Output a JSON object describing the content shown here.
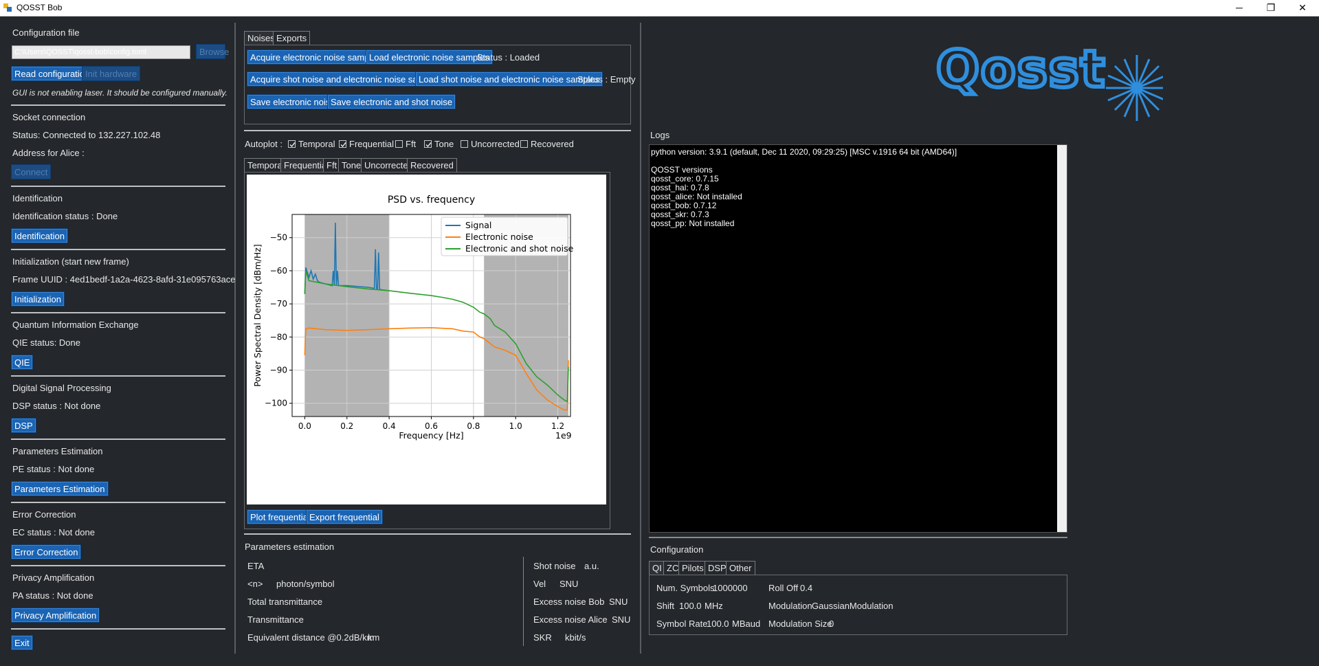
{
  "window": {
    "title": "QOSST Bob",
    "controls": [
      "─",
      "❐",
      "✕"
    ]
  },
  "left": {
    "config_heading": "Configuration file",
    "config_path": "C:\\Users\\QOSST\\qosst-bob\\config.toml",
    "browse": "Browse",
    "read_config": "Read configuration",
    "init_hardware": "Init hardware",
    "laser_note": "GUI is not enabling laser. It should be configured manually.",
    "socket_heading": "Socket connection",
    "socket_status": "Status: Connected to 132.227.102.48",
    "alice_address": "Address for Alice :",
    "connect": "Connect",
    "ident_heading": "Identification",
    "ident_status": "Identification status : Done",
    "ident_btn": "Identification",
    "init_heading": "Initialization (start new frame)",
    "frame_uuid": "Frame UUID : 4ed1bedf-1a2a-4623-8afd-31e095763ace",
    "init_btn": "Initialization",
    "qie_heading": "Quantum Information Exchange",
    "qie_status": "QIE status: Done",
    "qie_btn": "QIE",
    "dsp_heading": "Digital Signal Processing",
    "dsp_status": "DSP status : Not done",
    "dsp_btn": "DSP",
    "pe_heading": "Parameters Estimation",
    "pe_status": "PE status : Not done",
    "pe_btn": "Parameters Estimation",
    "ec_heading": "Error Correction",
    "ec_status": "EC status : Not done",
    "ec_btn": "Error Correction",
    "pa_heading": "Privacy Amplification",
    "pa_status": "PA status : Not done",
    "pa_btn": "Privacy Amplification",
    "exit": "Exit"
  },
  "middle": {
    "tabs": [
      "Noises",
      "Exports"
    ],
    "acq_elec": "Acquire electronic noise samples",
    "load_elec": "Load electronic noise samples",
    "elec_status": "Status : Loaded",
    "acq_shot": "Acquire shot noise and electronic noise samples",
    "load_shot": "Load shot noise and electronic noise samples",
    "shot_status": "Status : Empty",
    "save_elec": "Save electronic noise",
    "save_shot": "Save electronic and shot noise",
    "autoplot_label": "Autoplot :",
    "autoplot": [
      {
        "label": "Temporal",
        "checked": true
      },
      {
        "label": "Frequential",
        "checked": true
      },
      {
        "label": "Fft",
        "checked": false
      },
      {
        "label": "Tone",
        "checked": true
      },
      {
        "label": "Uncorrected",
        "checked": false
      },
      {
        "label": "Recovered",
        "checked": false
      }
    ],
    "plot_tabs": [
      "Temporal",
      "Frequential",
      "Fft",
      "Tone",
      "Uncorrected",
      "Recovered"
    ],
    "plot_btn": "Plot frequential",
    "export_btn": "Export frequential",
    "pe_heading": "Parameters estimation",
    "pe_left": [
      "ETA",
      "<n>",
      "Total transmittance",
      "Transmittance",
      "Equivalent distance @0.2dB/km"
    ],
    "pe_left_units": [
      "",
      "photon/symbol",
      "",
      "",
      "km"
    ],
    "pe_right": [
      "Shot noise",
      "Vel",
      "Excess noise Bob",
      "Excess noise Alice",
      "SKR"
    ],
    "pe_right_units": [
      "a.u.",
      "SNU",
      "SNU",
      "SNU",
      "kbit/s"
    ]
  },
  "right": {
    "logo_text": "Qosst",
    "logs_heading": "Logs",
    "log_lines": [
      "python version: 3.9.1 (default, Dec 11 2020, 09:29:25) [MSC v.1916 64 bit (AMD64)]",
      "",
      "QOSST versions",
      "qosst_core: 0.7.15",
      "qosst_hal: 0.7.8",
      "qosst_alice: Not installed",
      "qosst_bob: 0.7.12",
      "qosst_skr: 0.7.3",
      "qosst_pp: Not installed"
    ],
    "config_heading": "Configuration",
    "config_tabs": [
      "QI",
      "ZC",
      "Pilots",
      "DSP",
      "Other"
    ],
    "num_symbols_label": "Num. Symbols",
    "num_symbols": "1000000",
    "shift_label": "Shift",
    "shift": "100.0",
    "shift_unit": "MHz",
    "symbol_rate_label": "Symbol Rate",
    "symbol_rate": "100.0",
    "symbol_rate_unit": "MBaud",
    "roll_off_label": "Roll Off",
    "roll_off": "0.4",
    "modulation_label": "Modulation",
    "modulation": "GaussianModulation",
    "modulation_size_label": "Modulation Size",
    "modulation_size": "0"
  },
  "chart_data": {
    "type": "line",
    "title": "PSD vs. frequency",
    "xlabel": "Frequency [Hz]",
    "ylabel": "Power Spectral Density [dBm/Hz]",
    "x_multiplier": "1e9",
    "xlim": [
      -0.06,
      1.26
    ],
    "ylim": [
      -104,
      -43
    ],
    "xticks": [
      "0.0",
      "0.2",
      "0.4",
      "0.6",
      "0.8",
      "1.0",
      "1.2"
    ],
    "xtick_values": [
      0,
      0.2,
      0.4,
      0.6,
      0.8,
      1.0,
      1.2
    ],
    "yticks": [
      "−50",
      "−60",
      "−70",
      "−80",
      "−90",
      "−100"
    ],
    "ytick_values": [
      -50,
      -60,
      -70,
      -80,
      -90,
      -100
    ],
    "shaded_regions": [
      [
        0,
        0.4
      ],
      [
        0.85,
        1.25
      ]
    ],
    "grid": true,
    "legend_position": "top-right",
    "series": [
      {
        "name": "Signal",
        "color": "#1f77b4",
        "x": [
          0,
          0.005,
          0.02,
          0.03,
          0.04,
          0.05,
          0.06,
          0.07,
          0.1,
          0.13,
          0.135,
          0.14,
          0.145,
          0.15,
          0.155,
          0.16,
          0.2,
          0.3,
          0.33,
          0.335,
          0.34,
          0.345,
          0.35,
          0.355,
          0.36,
          0.4
        ],
        "y": [
          -67,
          -59,
          -62,
          -60,
          -62.5,
          -61,
          -63,
          -63.5,
          -64,
          -64.5,
          -60,
          -64.5,
          -45.5,
          -64.5,
          -60,
          -64.5,
          -64.5,
          -65,
          -65.3,
          -53.5,
          -65.3,
          -65.5,
          -54.5,
          -65.5,
          -65.7,
          -66
        ]
      },
      {
        "name": "Electronic noise",
        "color": "#ff7f0e",
        "x": [
          0,
          0.005,
          0.02,
          0.1,
          0.2,
          0.3,
          0.4,
          0.5,
          0.6,
          0.7,
          0.75,
          0.8,
          0.83,
          0.85,
          0.88,
          0.9,
          0.95,
          1.0,
          1.05,
          1.1,
          1.15,
          1.2,
          1.23,
          1.245,
          1.25
        ],
        "y": [
          -85.5,
          -77.5,
          -77.3,
          -77.8,
          -78,
          -77.8,
          -77.5,
          -77.3,
          -77.2,
          -77.5,
          -78.2,
          -78.5,
          -80,
          -80.5,
          -82,
          -83,
          -84,
          -85.5,
          -91,
          -96,
          -99,
          -101,
          -102,
          -102,
          -87
        ]
      },
      {
        "name": "Electronic and shot noise",
        "color": "#2ca02c",
        "x": [
          0,
          0.005,
          0.02,
          0.1,
          0.2,
          0.3,
          0.4,
          0.5,
          0.6,
          0.65,
          0.7,
          0.75,
          0.8,
          0.83,
          0.85,
          0.88,
          0.9,
          0.95,
          1.0,
          1.05,
          1.1,
          1.15,
          1.2,
          1.23,
          1.245,
          1.25
        ],
        "y": [
          -67,
          -60,
          -63,
          -64,
          -64.8,
          -65.5,
          -66,
          -66.8,
          -67.5,
          -68,
          -68.6,
          -69.5,
          -71,
          -72.5,
          -73,
          -74.5,
          -76.5,
          -78.5,
          -82,
          -88,
          -92,
          -94.5,
          -97.5,
          -99,
          -99.5,
          -89
        ]
      }
    ]
  }
}
